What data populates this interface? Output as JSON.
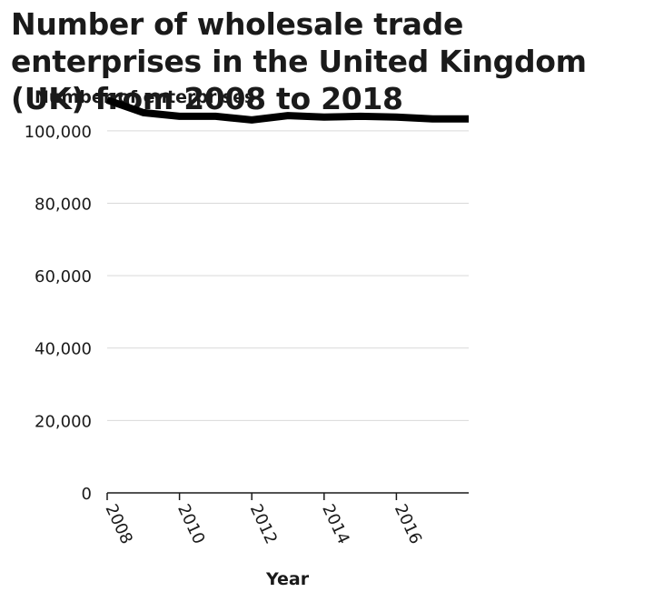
{
  "chart_data": {
    "type": "line",
    "title": "Number of wholesale trade enterprises in the United Kingdom (UK) from 2008 to 2018",
    "xlabel": "Year",
    "ylabel": "Number of enterprises",
    "x": [
      2008,
      2009,
      2010,
      2011,
      2012,
      2013,
      2014,
      2015,
      2016,
      2017,
      2018
    ],
    "values": [
      108500,
      105000,
      104000,
      104000,
      103000,
      104200,
      103800,
      104000,
      103800,
      103300,
      103300
    ],
    "xlim": [
      2008,
      2018
    ],
    "ylim": [
      0,
      110000
    ],
    "yticks": [
      0,
      20000,
      40000,
      60000,
      80000,
      100000
    ],
    "ytick_labels": [
      "0",
      "20,000",
      "40,000",
      "60,000",
      "80,000",
      "100,000"
    ],
    "xticks": [
      2008,
      2010,
      2012,
      2014,
      2016
    ],
    "xtick_labels": [
      "2008",
      "2010",
      "2012",
      "2014",
      "2016"
    ],
    "grid": "horizontal",
    "line_color": "#000000",
    "grid_color": "#d9d9d9"
  }
}
